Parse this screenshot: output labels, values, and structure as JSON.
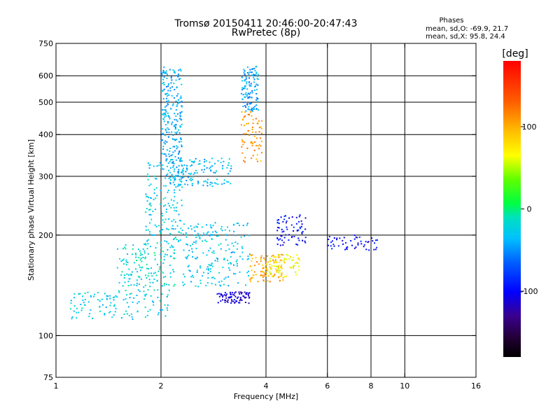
{
  "chart_data": {
    "type": "scatter",
    "title": "Tromsø 20150411 20:46:00-20:47:43",
    "subtitle": "RwPretec (8p)",
    "xlabel": "Frequency [MHz]",
    "ylabel": "Stationary phase Virtual Height [km]",
    "x_scale": "log",
    "y_scale": "log",
    "xlim": [
      1,
      16
    ],
    "ylim": [
      75,
      750
    ],
    "x_ticks": [
      "1",
      "2",
      "4",
      "6",
      "8",
      "10",
      "16"
    ],
    "x_tick_values": [
      1,
      2,
      4,
      6,
      8,
      10,
      16
    ],
    "y_ticks": [
      "75",
      "100",
      "200",
      "300",
      "400",
      "500",
      "600",
      "750"
    ],
    "y_tick_values": [
      75,
      100,
      200,
      300,
      400,
      500,
      600,
      750
    ],
    "x_gridlines": [
      2,
      4,
      6,
      8,
      10
    ],
    "y_gridlines": [
      100,
      200,
      300,
      400,
      500,
      600
    ],
    "phases": {
      "heading": "Phases",
      "o_line": "mean, sd,O:  -69.9, 21.7",
      "x_line": "mean, sd,X:  95.8, 24.4"
    },
    "colorbar": {
      "label": "[deg]",
      "range": [
        -180,
        180
      ],
      "ticks": [
        "100",
        "0",
        "-100"
      ],
      "tick_values": [
        100,
        0,
        -100
      ]
    },
    "traces": [
      {
        "x_range": [
          1.1,
          2.1
        ],
        "h_range": [
          112,
          135
        ],
        "phase": -25,
        "n": 120
      },
      {
        "x_range": [
          1.5,
          2.2
        ],
        "h_range": [
          135,
          190
        ],
        "phase": -20,
        "n": 160
      },
      {
        "x_range": [
          1.8,
          2.3
        ],
        "h_range": [
          190,
          330
        ],
        "phase": -25,
        "n": 150
      },
      {
        "x_range": [
          2.0,
          2.3
        ],
        "h_range": [
          330,
          640
        ],
        "phase": -40,
        "n": 220
      },
      {
        "x_range": [
          2.1,
          3.2
        ],
        "h_range": [
          280,
          340
        ],
        "phase": -35,
        "n": 140
      },
      {
        "x_range": [
          2.3,
          3.6
        ],
        "h_range": [
          140,
          220
        ],
        "phase": -30,
        "n": 200
      },
      {
        "x_range": [
          2.9,
          3.6
        ],
        "h_range": [
          125,
          135
        ],
        "phase": -115,
        "n": 80
      },
      {
        "x_range": [
          3.4,
          3.8
        ],
        "h_range": [
          470,
          640
        ],
        "phase": -45,
        "n": 120
      },
      {
        "x_range": [
          3.4,
          3.9
        ],
        "h_range": [
          330,
          470
        ],
        "phase": 110,
        "n": 70
      },
      {
        "x_range": [
          3.6,
          4.5
        ],
        "h_range": [
          145,
          175
        ],
        "phase": 105,
        "n": 90
      },
      {
        "x_range": [
          4.0,
          5.0
        ],
        "h_range": [
          150,
          175
        ],
        "phase": 70,
        "n": 80
      },
      {
        "x_range": [
          4.3,
          5.2
        ],
        "h_range": [
          185,
          230
        ],
        "phase": -100,
        "n": 70
      },
      {
        "x_range": [
          6.0,
          8.4
        ],
        "h_range": [
          180,
          200
        ],
        "phase": -100,
        "n": 50
      }
    ]
  }
}
